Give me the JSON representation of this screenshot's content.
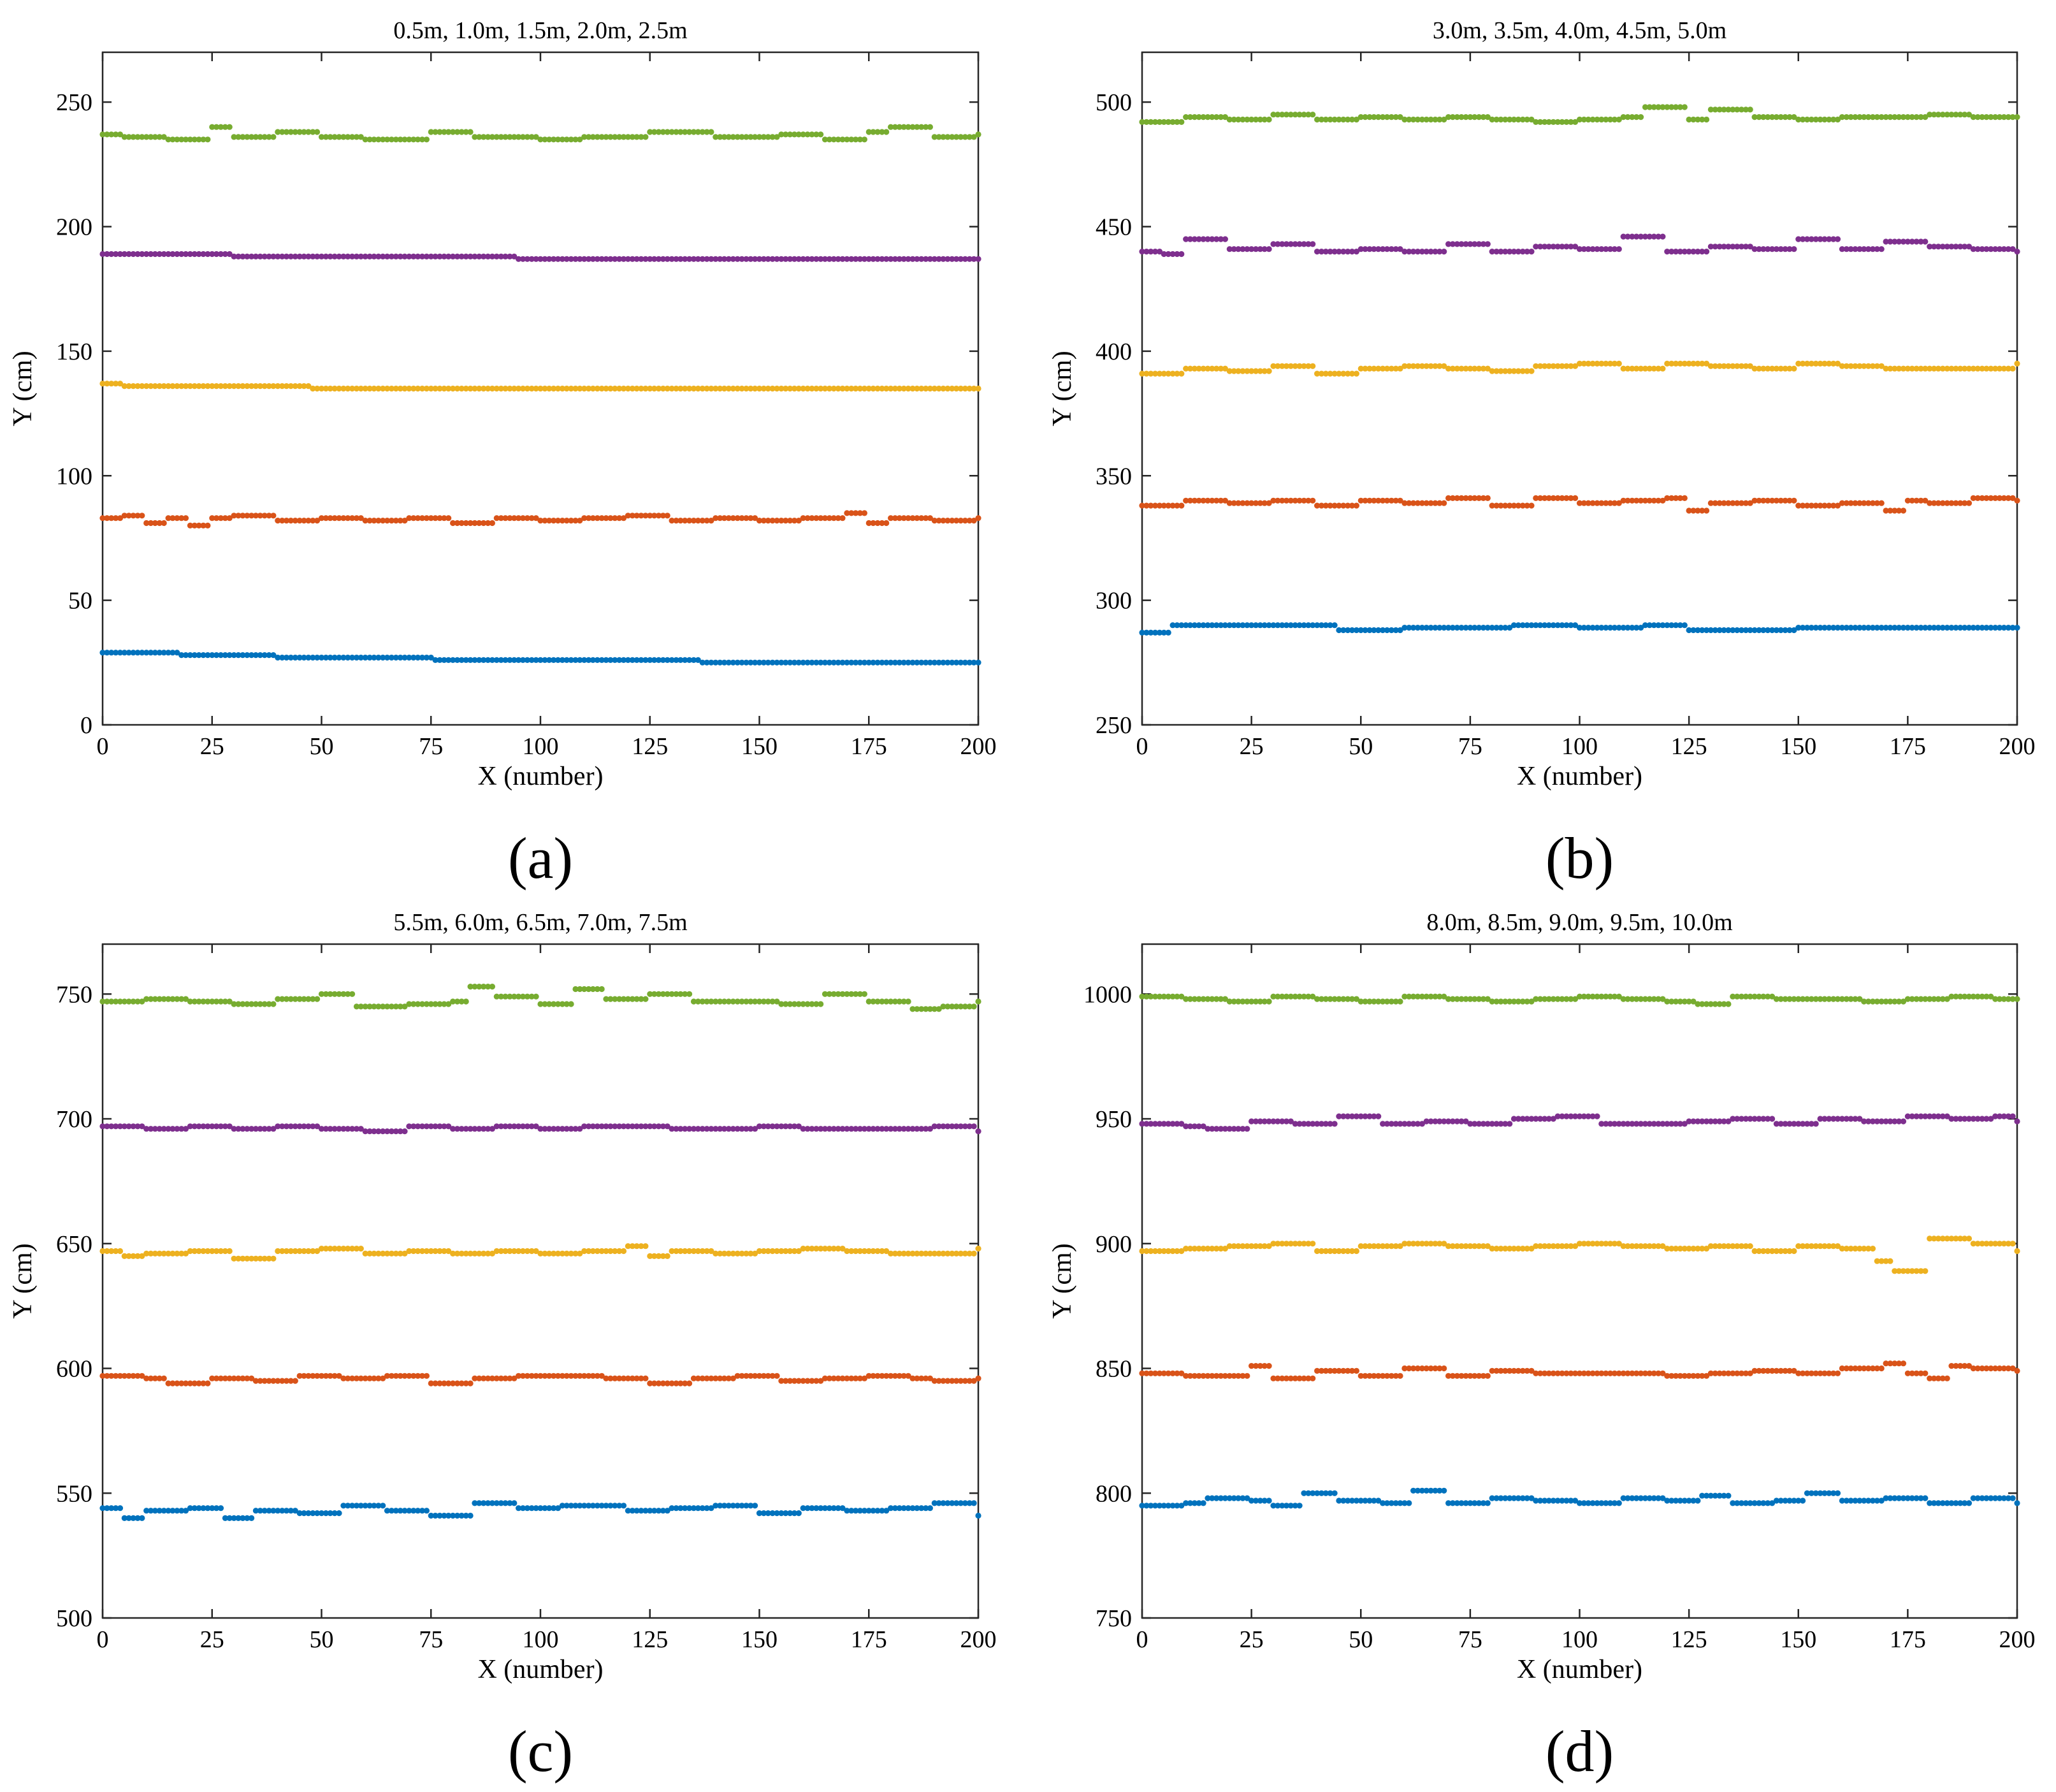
{
  "colors": {
    "series1": "#0072BD",
    "series2": "#D95319",
    "series3": "#EDB120",
    "series4": "#7E2F8E",
    "series5": "#77AC30"
  },
  "chart_data": [
    {
      "type": "scatter",
      "panel_label": "(a)",
      "title": "0.5m, 1.0m, 1.5m, 2.0m, 2.5m",
      "xlabel": "X (number)",
      "ylabel": "Y (cm)",
      "xlim": [
        0,
        200
      ],
      "ylim": [
        0,
        270
      ],
      "xticks": [
        0,
        25,
        50,
        75,
        100,
        125,
        150,
        175,
        200
      ],
      "yticks": [
        0,
        50,
        100,
        150,
        200,
        250
      ],
      "series": [
        {
          "name": "0.5m",
          "color_key": "series1",
          "x": [
            0,
            18,
            40,
            76,
            137,
            200
          ],
          "values": [
            29,
            28,
            27,
            26,
            25,
            25
          ]
        },
        {
          "name": "1.0m",
          "color_key": "series2",
          "x": [
            0,
            5,
            10,
            15,
            20,
            25,
            30,
            40,
            50,
            60,
            70,
            80,
            90,
            100,
            110,
            120,
            130,
            140,
            150,
            160,
            170,
            175,
            180,
            190,
            200
          ],
          "values": [
            83,
            84,
            81,
            83,
            80,
            83,
            84,
            82,
            83,
            82,
            83,
            81,
            83,
            82,
            83,
            84,
            82,
            83,
            82,
            83,
            85,
            81,
            83,
            82,
            83
          ]
        },
        {
          "name": "1.5m",
          "color_key": "series3",
          "x": [
            0,
            5,
            48,
            200
          ],
          "values": [
            137,
            136,
            135,
            135
          ]
        },
        {
          "name": "2.0m",
          "color_key": "series4",
          "x": [
            0,
            30,
            95,
            200
          ],
          "values": [
            189,
            188,
            187,
            187
          ]
        },
        {
          "name": "2.5m",
          "color_key": "series5",
          "x": [
            0,
            5,
            15,
            25,
            30,
            40,
            50,
            60,
            75,
            85,
            100,
            110,
            120,
            125,
            140,
            155,
            165,
            175,
            180,
            190,
            200
          ],
          "values": [
            237,
            236,
            235,
            240,
            236,
            238,
            236,
            235,
            238,
            236,
            235,
            236,
            236,
            238,
            236,
            237,
            235,
            238,
            240,
            236,
            237
          ]
        }
      ]
    },
    {
      "type": "scatter",
      "panel_label": "(b)",
      "title": "3.0m, 3.5m, 4.0m, 4.5m, 5.0m",
      "xlabel": "X (number)",
      "ylabel": "Y (cm)",
      "xlim": [
        0,
        200
      ],
      "ylim": [
        250,
        520
      ],
      "xticks": [
        0,
        25,
        50,
        75,
        100,
        125,
        150,
        175,
        200
      ],
      "yticks": [
        250,
        300,
        350,
        400,
        450,
        500
      ],
      "series": [
        {
          "name": "3.0m",
          "color_key": "series1",
          "x": [
            0,
            7,
            45,
            60,
            85,
            100,
            115,
            125,
            150,
            200
          ],
          "values": [
            287,
            290,
            288,
            289,
            290,
            289,
            290,
            288,
            289,
            289
          ]
        },
        {
          "name": "3.5m",
          "color_key": "series2",
          "x": [
            0,
            10,
            20,
            30,
            40,
            50,
            60,
            70,
            80,
            90,
            100,
            110,
            120,
            125,
            130,
            140,
            150,
            160,
            170,
            175,
            180,
            190,
            200
          ],
          "values": [
            338,
            340,
            339,
            340,
            338,
            340,
            339,
            341,
            338,
            341,
            339,
            340,
            341,
            336,
            339,
            340,
            338,
            339,
            336,
            340,
            339,
            341,
            340
          ]
        },
        {
          "name": "4.0m",
          "color_key": "series3",
          "x": [
            0,
            10,
            20,
            30,
            40,
            50,
            60,
            70,
            80,
            90,
            100,
            110,
            120,
            130,
            140,
            150,
            160,
            170,
            180,
            190,
            200
          ],
          "values": [
            391,
            393,
            392,
            394,
            391,
            393,
            394,
            393,
            392,
            394,
            395,
            393,
            395,
            394,
            393,
            395,
            394,
            393,
            393,
            393,
            395
          ]
        },
        {
          "name": "4.5m",
          "color_key": "series4",
          "x": [
            0,
            5,
            10,
            20,
            30,
            40,
            50,
            60,
            70,
            80,
            90,
            100,
            110,
            120,
            130,
            140,
            150,
            160,
            170,
            180,
            190,
            200
          ],
          "values": [
            440,
            439,
            445,
            441,
            443,
            440,
            441,
            440,
            443,
            440,
            442,
            441,
            446,
            440,
            442,
            441,
            445,
            441,
            444,
            442,
            441,
            440
          ]
        },
        {
          "name": "5.0m",
          "color_key": "series5",
          "x": [
            0,
            10,
            20,
            30,
            40,
            50,
            60,
            70,
            80,
            90,
            100,
            110,
            115,
            125,
            130,
            140,
            150,
            160,
            170,
            180,
            190,
            200
          ],
          "values": [
            492,
            494,
            493,
            495,
            493,
            494,
            493,
            494,
            493,
            492,
            493,
            494,
            498,
            493,
            497,
            494,
            493,
            494,
            494,
            495,
            494,
            494
          ]
        }
      ]
    },
    {
      "type": "scatter",
      "panel_label": "(c)",
      "title": "5.5m, 6.0m, 6.5m, 7.0m, 7.5m",
      "xlabel": "X (number)",
      "ylabel": "Y (cm)",
      "xlim": [
        0,
        200
      ],
      "ylim": [
        500,
        770
      ],
      "xticks": [
        0,
        25,
        50,
        75,
        100,
        125,
        150,
        175,
        200
      ],
      "yticks": [
        500,
        550,
        600,
        650,
        700,
        750
      ],
      "series": [
        {
          "name": "5.5m",
          "color_key": "series1",
          "x": [
            0,
            5,
            10,
            20,
            28,
            35,
            45,
            55,
            65,
            75,
            85,
            95,
            105,
            120,
            130,
            140,
            150,
            160,
            170,
            180,
            190,
            200
          ],
          "values": [
            544,
            540,
            543,
            544,
            540,
            543,
            542,
            545,
            543,
            541,
            546,
            544,
            545,
            543,
            544,
            545,
            542,
            544,
            543,
            544,
            546,
            541
          ]
        },
        {
          "name": "6.0m",
          "color_key": "series2",
          "x": [
            0,
            10,
            15,
            25,
            35,
            45,
            55,
            65,
            75,
            85,
            95,
            105,
            115,
            125,
            135,
            145,
            155,
            165,
            175,
            185,
            190,
            200
          ],
          "values": [
            597,
            596,
            594,
            596,
            595,
            597,
            596,
            597,
            594,
            596,
            597,
            597,
            596,
            594,
            596,
            597,
            595,
            596,
            597,
            596,
            595,
            596
          ]
        },
        {
          "name": "6.5m",
          "color_key": "series3",
          "x": [
            0,
            5,
            10,
            20,
            30,
            40,
            50,
            60,
            70,
            80,
            90,
            100,
            110,
            120,
            125,
            130,
            140,
            150,
            160,
            170,
            180,
            190,
            200
          ],
          "values": [
            647,
            645,
            646,
            647,
            644,
            647,
            648,
            646,
            647,
            646,
            647,
            646,
            647,
            649,
            645,
            647,
            646,
            647,
            648,
            647,
            646,
            646,
            648
          ]
        },
        {
          "name": "7.0m",
          "color_key": "series4",
          "x": [
            0,
            10,
            20,
            30,
            40,
            50,
            60,
            70,
            80,
            90,
            100,
            110,
            120,
            130,
            140,
            150,
            160,
            170,
            180,
            190,
            200
          ],
          "values": [
            697,
            696,
            697,
            696,
            697,
            696,
            695,
            697,
            696,
            697,
            696,
            697,
            697,
            696,
            696,
            697,
            696,
            696,
            696,
            697,
            695
          ]
        },
        {
          "name": "7.5m",
          "color_key": "series5",
          "x": [
            0,
            10,
            20,
            30,
            40,
            50,
            58,
            70,
            80,
            84,
            90,
            100,
            108,
            115,
            125,
            135,
            145,
            155,
            165,
            175,
            185,
            192,
            200
          ],
          "values": [
            747,
            748,
            747,
            746,
            748,
            750,
            745,
            746,
            747,
            753,
            749,
            746,
            752,
            748,
            750,
            747,
            747,
            746,
            750,
            747,
            744,
            745,
            747
          ]
        }
      ]
    },
    {
      "type": "scatter",
      "panel_label": "(d)",
      "title": "8.0m, 8.5m, 9.0m, 9.5m, 10.0m",
      "xlabel": "X (number)",
      "ylabel": "Y (cm)",
      "xlim": [
        0,
        200
      ],
      "ylim": [
        750,
        1020
      ],
      "xticks": [
        0,
        25,
        50,
        75,
        100,
        125,
        150,
        175,
        200
      ],
      "yticks": [
        750,
        800,
        850,
        900,
        950,
        1000
      ],
      "series": [
        {
          "name": "8.0m",
          "color_key": "series1",
          "x": [
            0,
            10,
            15,
            25,
            30,
            37,
            45,
            55,
            62,
            70,
            80,
            90,
            100,
            110,
            120,
            128,
            135,
            145,
            152,
            160,
            170,
            180,
            190,
            200
          ],
          "values": [
            795,
            796,
            798,
            797,
            795,
            800,
            797,
            796,
            801,
            796,
            798,
            797,
            796,
            798,
            797,
            799,
            796,
            797,
            800,
            797,
            798,
            796,
            798,
            796
          ]
        },
        {
          "name": "8.5m",
          "color_key": "series2",
          "x": [
            0,
            10,
            20,
            25,
            30,
            40,
            50,
            60,
            70,
            80,
            90,
            100,
            110,
            120,
            130,
            140,
            150,
            160,
            170,
            175,
            180,
            185,
            190,
            200
          ],
          "values": [
            848,
            847,
            847,
            851,
            846,
            849,
            847,
            850,
            847,
            849,
            848,
            848,
            848,
            847,
            848,
            849,
            848,
            850,
            852,
            848,
            846,
            851,
            850,
            849
          ]
        },
        {
          "name": "9.0m",
          "color_key": "series3",
          "x": [
            0,
            10,
            20,
            30,
            40,
            50,
            60,
            70,
            80,
            90,
            100,
            110,
            120,
            130,
            140,
            150,
            160,
            168,
            172,
            180,
            190,
            200
          ],
          "values": [
            897,
            898,
            899,
            900,
            897,
            899,
            900,
            899,
            898,
            899,
            900,
            899,
            898,
            899,
            897,
            899,
            898,
            893,
            889,
            902,
            900,
            897
          ]
        },
        {
          "name": "9.5m",
          "color_key": "series4",
          "x": [
            0,
            10,
            15,
            25,
            35,
            45,
            55,
            65,
            75,
            85,
            95,
            105,
            115,
            125,
            135,
            145,
            155,
            165,
            175,
            185,
            195,
            200
          ],
          "values": [
            948,
            947,
            946,
            949,
            948,
            951,
            948,
            949,
            948,
            950,
            951,
            948,
            948,
            949,
            950,
            948,
            950,
            949,
            951,
            950,
            951,
            949
          ]
        },
        {
          "name": "10.0m",
          "color_key": "series5",
          "x": [
            0,
            10,
            20,
            30,
            40,
            50,
            60,
            70,
            80,
            90,
            100,
            110,
            120,
            127,
            135,
            145,
            155,
            165,
            175,
            185,
            195,
            200
          ],
          "values": [
            999,
            998,
            997,
            999,
            998,
            997,
            999,
            998,
            997,
            998,
            999,
            998,
            997,
            996,
            999,
            998,
            998,
            997,
            998,
            999,
            998,
            998
          ]
        }
      ]
    }
  ]
}
